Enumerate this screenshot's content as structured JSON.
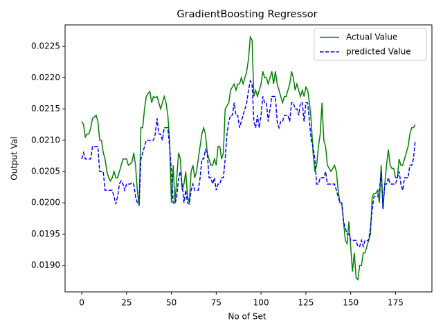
{
  "chart_data": {
    "type": "line",
    "title": "GradientBoosting Regressor",
    "xlabel": "No of Set",
    "ylabel": "Output Val",
    "legend": "upper right",
    "xlim": [
      -9.3,
      195.3
    ],
    "ylim": [
      0.018576,
      0.022844
    ],
    "xticks": [
      0,
      25,
      50,
      75,
      100,
      125,
      150,
      175
    ],
    "yticks": [
      {
        "value": 0.019,
        "label": "0.0190"
      },
      {
        "value": 0.0195,
        "label": "0.0195"
      },
      {
        "value": 0.02,
        "label": "0.0200"
      },
      {
        "value": 0.0205,
        "label": "0.0205"
      },
      {
        "value": 0.021,
        "label": "0.0210"
      },
      {
        "value": 0.0215,
        "label": "0.0215"
      },
      {
        "value": 0.022,
        "label": "0.0220"
      },
      {
        "value": 0.0225,
        "label": "0.0225"
      }
    ],
    "x": [
      0,
      1,
      2,
      3,
      4,
      5,
      6,
      7,
      8,
      9,
      10,
      11,
      12,
      13,
      14,
      15,
      16,
      17,
      18,
      19,
      20,
      21,
      22,
      23,
      24,
      25,
      26,
      27,
      28,
      29,
      30,
      31,
      32,
      33,
      34,
      35,
      36,
      37,
      38,
      39,
      40,
      41,
      42,
      43,
      44,
      45,
      46,
      47,
      48,
      49,
      50,
      51,
      52,
      53,
      54,
      55,
      56,
      57,
      58,
      59,
      60,
      61,
      62,
      63,
      64,
      65,
      66,
      67,
      68,
      69,
      70,
      71,
      72,
      73,
      74,
      75,
      76,
      77,
      78,
      79,
      80,
      81,
      82,
      83,
      84,
      85,
      86,
      87,
      88,
      89,
      90,
      91,
      92,
      93,
      94,
      95,
      96,
      97,
      98,
      99,
      100,
      101,
      102,
      103,
      104,
      105,
      106,
      107,
      108,
      109,
      110,
      111,
      112,
      113,
      114,
      115,
      116,
      117,
      118,
      119,
      120,
      121,
      122,
      123,
      124,
      125,
      126,
      127,
      128,
      129,
      130,
      131,
      132,
      133,
      134,
      135,
      136,
      137,
      138,
      139,
      140,
      141,
      142,
      143,
      144,
      145,
      146,
      147,
      148,
      149,
      150,
      151,
      152,
      153,
      154,
      155,
      156,
      157,
      158,
      159,
      160,
      161,
      162,
      163,
      164,
      165,
      166,
      167,
      168,
      169,
      170,
      171,
      172,
      173,
      174,
      175,
      176,
      177,
      178,
      179,
      180,
      181,
      182,
      183,
      184,
      185,
      186
    ],
    "series": [
      {
        "name": "Actual Value",
        "color": "#008000",
        "dash": "solid",
        "values": [
          0.0213,
          0.02125,
          0.02105,
          0.0211,
          0.0211,
          0.0212,
          0.02135,
          0.02137,
          0.0214,
          0.0213,
          0.021,
          0.021,
          0.0208,
          0.0207,
          0.0205,
          0.0204,
          0.02035,
          0.0204,
          0.0205,
          0.0204,
          0.0204,
          0.0205,
          0.0206,
          0.0207,
          0.0207,
          0.0207,
          0.0206,
          0.02062,
          0.02065,
          0.0208,
          0.0206,
          0.0202,
          0.01995,
          0.0212,
          0.0212,
          0.0215,
          0.0217,
          0.02175,
          0.02178,
          0.0216,
          0.0217,
          0.02168,
          0.0217,
          0.0216,
          0.0215,
          0.0216,
          0.0217,
          0.0216,
          0.0214,
          0.021,
          0.02,
          0.0206,
          0.02,
          0.0204,
          0.0208,
          0.0207,
          0.0202,
          0.0203,
          0.0205,
          0.0201,
          0.02,
          0.0205,
          0.0206,
          0.0204,
          0.0205,
          0.0207,
          0.0209,
          0.0211,
          0.0212,
          0.0211,
          0.0208,
          0.0207,
          0.0206,
          0.0206,
          0.0207,
          0.0206,
          0.0209,
          0.0209,
          0.0207,
          0.0208,
          0.0215,
          0.02155,
          0.0216,
          0.0218,
          0.02185,
          0.0219,
          0.0218,
          0.0219,
          0.0219,
          0.022,
          0.0219,
          0.022,
          0.0221,
          0.0223,
          0.02265,
          0.0226,
          0.0217,
          0.0218,
          0.0217,
          0.0218,
          0.0219,
          0.0221,
          0.022,
          0.022,
          0.0219,
          0.022,
          0.0221,
          0.0219,
          0.0221,
          0.0219,
          0.0218,
          0.0217,
          0.0216,
          0.0217,
          0.0217,
          0.0218,
          0.0219,
          0.0221,
          0.022,
          0.0218,
          0.0219,
          0.0218,
          0.0217,
          0.0218,
          0.0217,
          0.02185,
          0.0218,
          0.0216,
          0.0213,
          0.0208,
          0.0205,
          0.0206,
          0.0209,
          0.0211,
          0.0216,
          0.021,
          0.0209,
          0.0206,
          0.02055,
          0.0205,
          0.02055,
          0.0206,
          0.0205,
          0.0202,
          0.02,
          0.02,
          0.0197,
          0.0194,
          0.01935,
          0.0197,
          0.0193,
          0.0189,
          0.0192,
          0.0188,
          0.01877,
          0.019,
          0.019,
          0.0192,
          0.0192,
          0.0193,
          0.0194,
          0.0195,
          0.0201,
          0.02015,
          0.02015,
          0.0202,
          0.02,
          0.0206,
          0.0199,
          0.0203,
          0.0206,
          0.02085,
          0.0206,
          0.02055,
          0.02055,
          0.0204,
          0.0204,
          0.0207,
          0.0206,
          0.0206,
          0.0207,
          0.0208,
          0.0209,
          0.0211,
          0.0212,
          0.0212,
          0.02125
        ]
      },
      {
        "name": "predicted Value",
        "color": "#0000ff",
        "dash": "dashed",
        "values": [
          0.0207,
          0.0208,
          0.0207,
          0.0207,
          0.0207,
          0.0207,
          0.0209,
          0.0209,
          0.0209,
          0.0209,
          0.0205,
          0.0205,
          0.0205,
          0.0202,
          0.0202,
          0.0202,
          0.0202,
          0.0202,
          0.0201,
          0.01998,
          0.0201,
          0.0203,
          0.02035,
          0.0203,
          0.0202,
          0.0203,
          0.0203,
          0.0203,
          0.02032,
          0.0203,
          0.0201,
          0.02,
          0.01998,
          0.0207,
          0.0208,
          0.0209,
          0.021,
          0.021,
          0.021,
          0.021,
          0.021,
          0.0211,
          0.02135,
          0.0211,
          0.0211,
          0.021,
          0.0212,
          0.0212,
          0.0212,
          0.0209,
          0.0205,
          0.02,
          0.01998,
          0.0201,
          0.0204,
          0.0205,
          0.0203,
          0.02,
          0.0202,
          0.02,
          0.01998,
          0.0202,
          0.0203,
          0.0202,
          0.0202,
          0.0202,
          0.0204,
          0.0207,
          0.0207,
          0.02085,
          0.0208,
          0.0204,
          0.0204,
          0.0203,
          0.0204,
          0.0202,
          0.0203,
          0.0203,
          0.0204,
          0.0204,
          0.0207,
          0.0211,
          0.0213,
          0.0214,
          0.0214,
          0.0216,
          0.0214,
          0.0214,
          0.0212,
          0.0213,
          0.0214,
          0.0215,
          0.0216,
          0.0218,
          0.02195,
          0.0219,
          0.0213,
          0.0212,
          0.0214,
          0.0212,
          0.0214,
          0.0217,
          0.0216,
          0.0216,
          0.0213,
          0.0215,
          0.0217,
          0.0217,
          0.0217,
          0.0213,
          0.0212,
          0.0213,
          0.0213,
          0.0214,
          0.0214,
          0.0214,
          0.0213,
          0.0216,
          0.0216,
          0.0215,
          0.0215,
          0.0214,
          0.0216,
          0.0216,
          0.0213,
          0.0216,
          0.0216,
          0.0213,
          0.021,
          0.0209,
          0.0207,
          0.0203,
          0.0203,
          0.0204,
          0.0204,
          0.0204,
          0.0205,
          0.0203,
          0.0203,
          0.0203,
          0.0203,
          0.0203,
          0.0202,
          0.0201,
          0.02,
          0.02,
          0.0197,
          0.0196,
          0.0195,
          0.0195,
          0.0194,
          0.0194,
          0.0194,
          0.0194,
          0.0193,
          0.0193,
          0.0194,
          0.0193,
          0.0194,
          0.0194,
          0.0194,
          0.0196,
          0.0199,
          0.0201,
          0.0201,
          0.0201,
          0.0202,
          0.0205,
          0.0199,
          0.0203,
          0.0203,
          0.0204,
          0.0203,
          0.0203,
          0.0203,
          0.0203,
          0.0204,
          0.0205,
          0.0203,
          0.0202,
          0.0204,
          0.0204,
          0.0204,
          0.0206,
          0.0206,
          0.0207,
          0.021
        ]
      }
    ]
  }
}
